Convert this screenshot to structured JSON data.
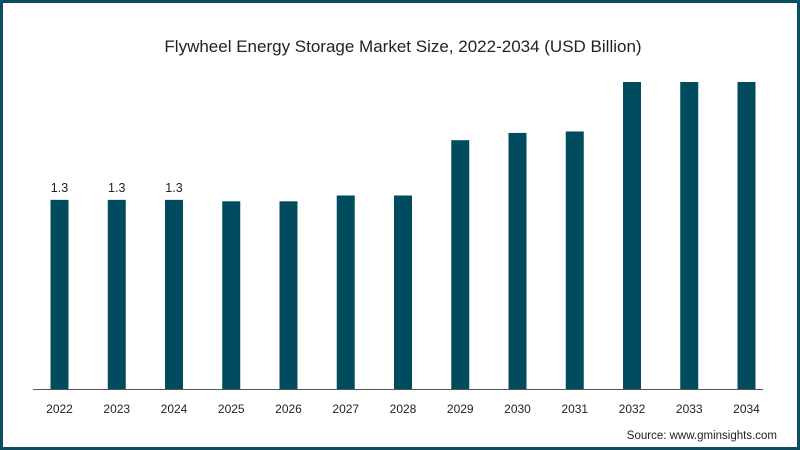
{
  "chart_data": {
    "type": "bar",
    "title": "Flywheel Energy Storage Market Size, 2022-2034 (USD Billion)",
    "categories": [
      "2022",
      "2023",
      "2024",
      "2025",
      "2026",
      "2027",
      "2028",
      "2029",
      "2030",
      "2031",
      "2032",
      "2033",
      "2034"
    ],
    "values": [
      1.3,
      1.3,
      1.3,
      1.29,
      1.29,
      1.33,
      1.33,
      1.71,
      1.76,
      1.77,
      2.11,
      2.11,
      2.11
    ],
    "data_labels": [
      "1.3",
      "1.3",
      "1.3",
      null,
      null,
      null,
      null,
      null,
      null,
      null,
      null,
      null,
      null
    ],
    "xlabel": "",
    "ylabel": "",
    "ylim": [
      0,
      2.11
    ],
    "grid": false,
    "bar_color": "#004c5e",
    "axis_color": "#555555"
  },
  "source": "Source: www.gminsights.com"
}
